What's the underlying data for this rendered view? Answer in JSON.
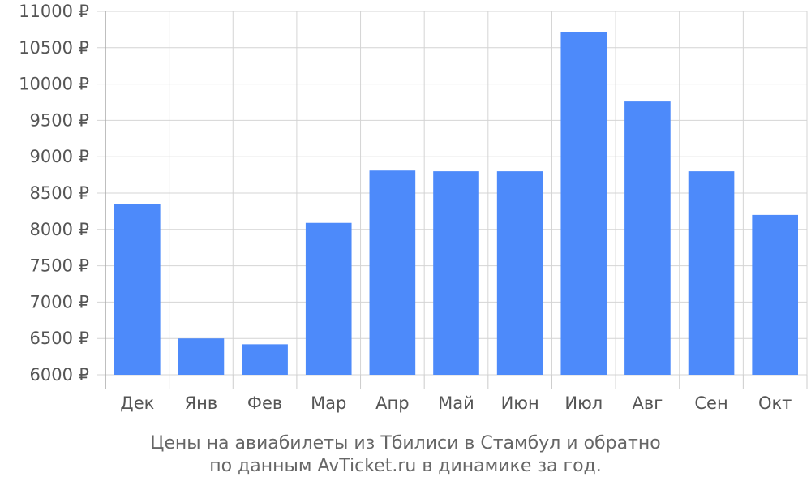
{
  "chart_data": {
    "type": "bar",
    "categories": [
      "Дек",
      "Янв",
      "Фев",
      "Мар",
      "Апр",
      "Май",
      "Июн",
      "Июл",
      "Авг",
      "Сен",
      "Окт"
    ],
    "values": [
      8350,
      6500,
      6420,
      8090,
      8810,
      8800,
      8800,
      10710,
      9760,
      8800,
      8200
    ],
    "ylim": [
      6000,
      11000
    ],
    "yticks": [
      6000,
      6500,
      7000,
      7500,
      8000,
      8500,
      9000,
      9500,
      10000,
      10500,
      11000
    ],
    "ytick_labels": [
      "6000 ₽",
      "6500 ₽",
      "7000 ₽",
      "7500 ₽",
      "8000 ₽",
      "8500 ₽",
      "9000 ₽",
      "9500 ₽",
      "10000 ₽",
      "10500 ₽",
      "11000 ₽"
    ],
    "bar_color": "#4d8afa",
    "grid": true,
    "caption_lines": [
      "Цены на авиабилеты из Тбилиси в Стамбул и обратно",
      "по данным AvTicket.ru в динамике за год."
    ]
  }
}
